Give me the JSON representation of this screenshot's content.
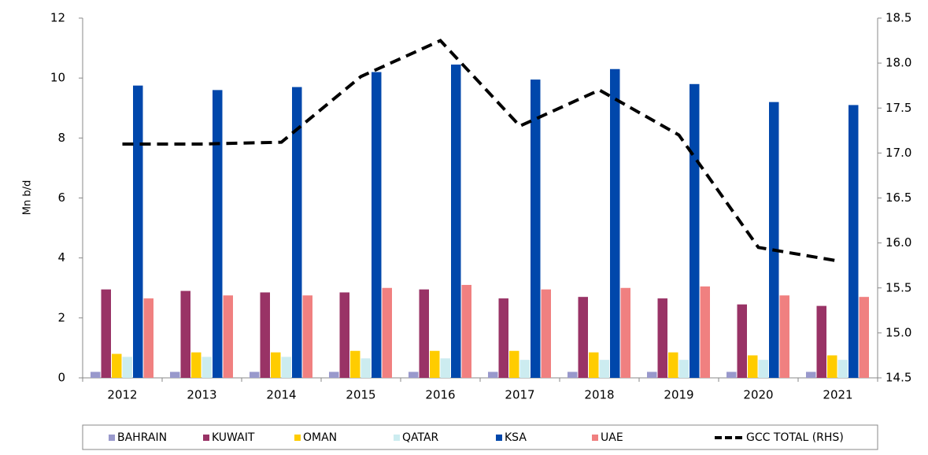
{
  "chart_data": {
    "type": "bar",
    "y_label": "Mn b/d",
    "categories": [
      "2012",
      "2013",
      "2014",
      "2015",
      "2016",
      "2017",
      "2018",
      "2019",
      "2020",
      "2021"
    ],
    "series": [
      {
        "name": "BAHRAIN",
        "color": "#9999cc",
        "values": [
          0.2,
          0.2,
          0.2,
          0.2,
          0.2,
          0.2,
          0.2,
          0.2,
          0.2,
          0.2
        ]
      },
      {
        "name": "KUWAIT",
        "color": "#993366",
        "values": [
          2.95,
          2.9,
          2.85,
          2.85,
          2.95,
          2.65,
          2.7,
          2.65,
          2.45,
          2.4
        ]
      },
      {
        "name": "OMAN",
        "color": "#ffcc00",
        "values": [
          0.8,
          0.85,
          0.85,
          0.9,
          0.9,
          0.9,
          0.85,
          0.85,
          0.75,
          0.75
        ]
      },
      {
        "name": "QATAR",
        "color": "#ccecf0",
        "values": [
          0.7,
          0.7,
          0.7,
          0.65,
          0.65,
          0.6,
          0.6,
          0.6,
          0.6,
          0.6
        ]
      },
      {
        "name": "KSA",
        "color": "#0047ab",
        "values": [
          9.75,
          9.6,
          9.7,
          10.2,
          10.45,
          9.95,
          10.3,
          9.8,
          9.2,
          9.1
        ]
      },
      {
        "name": "UAE",
        "color": "#f08080",
        "values": [
          2.65,
          2.75,
          2.75,
          3.0,
          3.1,
          2.95,
          3.0,
          3.05,
          2.75,
          2.7
        ]
      },
      {
        "name": "GCC TOTAL (RHS)",
        "color": "#000000",
        "type": "line",
        "axis": "y2",
        "values": [
          17.1,
          17.1,
          17.12,
          17.85,
          18.25,
          17.3,
          17.7,
          17.2,
          15.95,
          15.8
        ]
      }
    ],
    "ylim": [
      0,
      12
    ],
    "yticks": [
      0,
      2,
      4,
      6,
      8,
      10,
      12
    ],
    "y2lim": [
      14.5,
      18.5
    ],
    "y2ticks": [
      14.5,
      {
        "value": 15,
        "label": "15.0"
      },
      15.5,
      {
        "value": 16,
        "label": "16.0"
      },
      16.5,
      {
        "value": 17,
        "label": "17.0"
      },
      17.5,
      {
        "value": 18,
        "label": "18.0"
      },
      18.5
    ],
    "legend": "bottom",
    "grid": false
  }
}
